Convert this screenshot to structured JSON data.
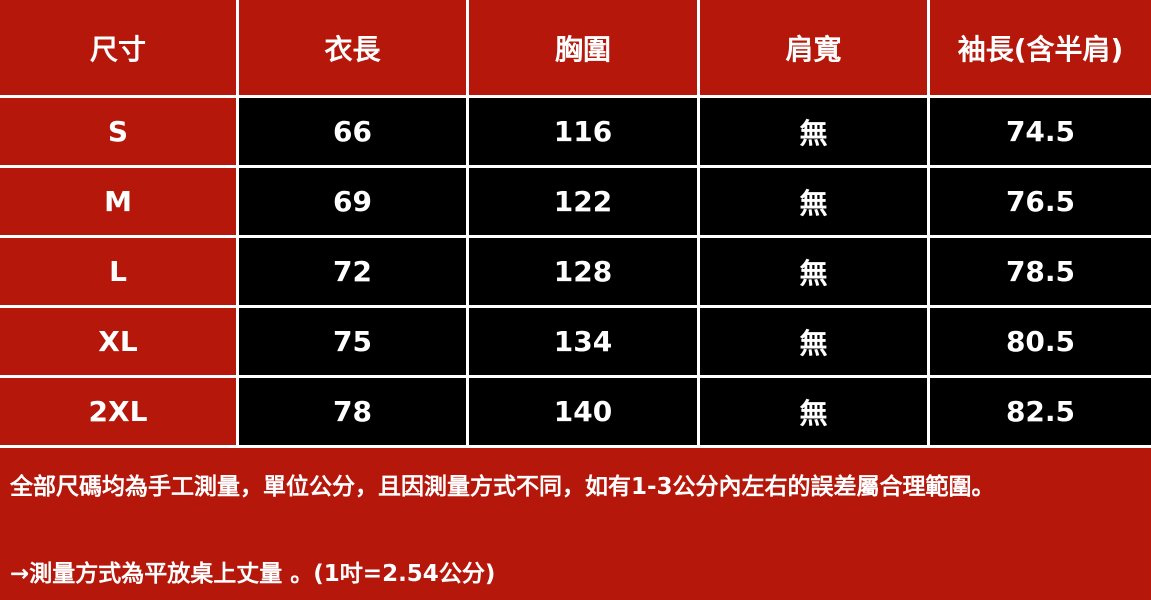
{
  "table": {
    "header": [
      "尺寸",
      "衣長",
      "胸圍",
      "肩寬",
      "袖長(含半肩)"
    ],
    "rows": [
      [
        "S",
        "66",
        "116",
        "無",
        "74.5"
      ],
      [
        "M",
        "69",
        "122",
        "無",
        "76.5"
      ],
      [
        "L",
        "72",
        "128",
        "無",
        "78.5"
      ],
      [
        "XL",
        "75",
        "134",
        "無",
        "80.5"
      ],
      [
        "2XL",
        "78",
        "140",
        "無",
        "82.5"
      ]
    ]
  },
  "notes": [
    "全部尺碼均為手工測量，單位公分，且因測量方式不同，如有1-3公分內左右的誤差屬合理範圍。",
    "→測量方式為平放桌上丈量 。(1吋=2.54公分)"
  ]
}
